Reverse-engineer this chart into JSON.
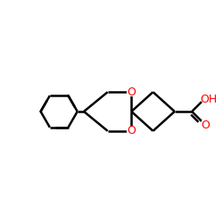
{
  "bg_color": "#ffffff",
  "bond_color": "#000000",
  "oxygen_color": "#ff0000",
  "line_width": 1.8,
  "figsize": [
    2.5,
    2.5
  ],
  "dpi": 100,
  "xlim": [
    -2.3,
    1.6
  ],
  "ylim": [
    -1.0,
    1.0
  ]
}
